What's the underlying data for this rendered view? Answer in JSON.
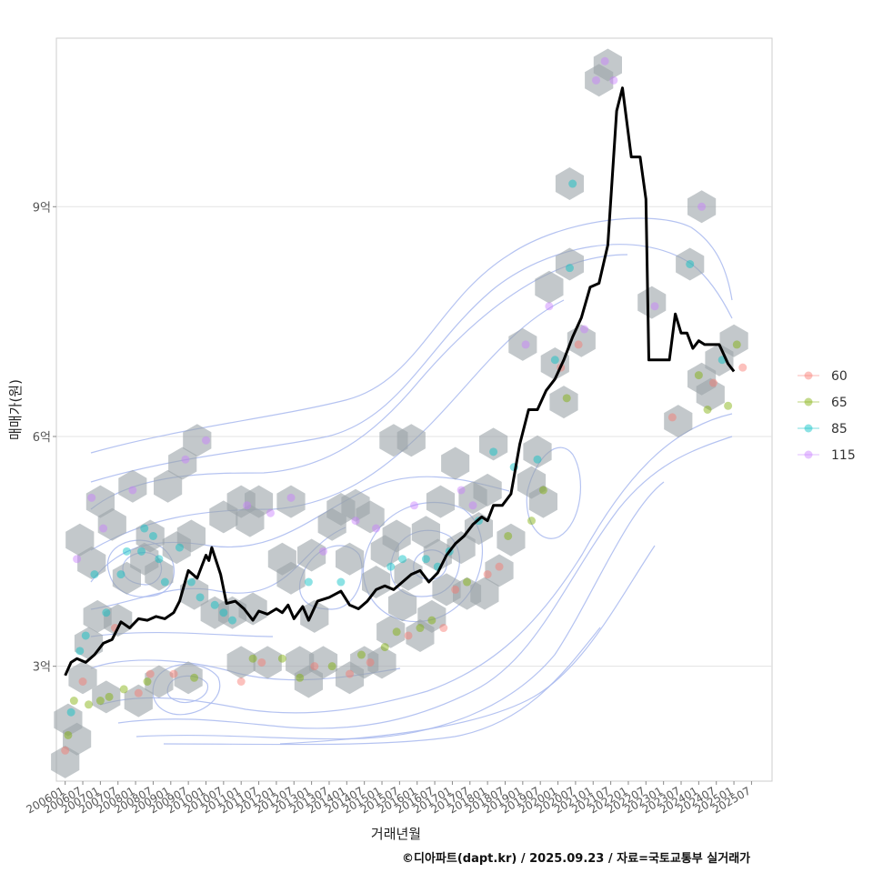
{
  "caption": "©디아파트(dapt.kr) / 2025.09.23 / 자료=국토교통부 실거래가",
  "chart_data": {
    "type": "line",
    "xlabel": "거래년월",
    "ylabel": "매매가(원)",
    "y_unit": "억",
    "ylim": [
      1.5,
      11.2
    ],
    "y_ticks": [
      3,
      6,
      9
    ],
    "y_tick_labels": [
      "3억",
      "6억",
      "9억"
    ],
    "xlim": [
      "2005-10",
      "2026-02"
    ],
    "x_tick_labels": [
      "200601",
      "200607",
      "200701",
      "200707",
      "200801",
      "200807",
      "200901",
      "200907",
      "201001",
      "201007",
      "201101",
      "201107",
      "201201",
      "201207",
      "201301",
      "201307",
      "201401",
      "201407",
      "201501",
      "201507",
      "201601",
      "201607",
      "201701",
      "201707",
      "201801",
      "201807",
      "201901",
      "201907",
      "202001",
      "202007",
      "202101",
      "202107",
      "202201",
      "202207",
      "202301",
      "202307",
      "202401",
      "202407",
      "202501",
      "202507"
    ],
    "grid": true,
    "legend_position": "right",
    "legend": [
      {
        "label": "60",
        "color": "#F8766D"
      },
      {
        "label": "65",
        "color": "#7CAE00"
      },
      {
        "label": "85",
        "color": "#00BFC4"
      },
      {
        "label": "115",
        "color": "#C77CFF"
      }
    ],
    "series": [
      {
        "kind": "median-trend",
        "color": "#000000",
        "points": [
          [
            "2006-01",
            2.88
          ],
          [
            "2006-03",
            3.05
          ],
          [
            "2006-05",
            3.1
          ],
          [
            "2006-08",
            3.05
          ],
          [
            "2006-11",
            3.15
          ],
          [
            "2007-02",
            3.3
          ],
          [
            "2007-05",
            3.35
          ],
          [
            "2007-08",
            3.58
          ],
          [
            "2007-11",
            3.5
          ],
          [
            "2008-02",
            3.62
          ],
          [
            "2008-05",
            3.6
          ],
          [
            "2008-08",
            3.65
          ],
          [
            "2008-11",
            3.62
          ],
          [
            "2009-02",
            3.7
          ],
          [
            "2009-04",
            3.85
          ],
          [
            "2009-07",
            4.25
          ],
          [
            "2009-10",
            4.15
          ],
          [
            "2010-01",
            4.45
          ],
          [
            "2010-02",
            4.38
          ],
          [
            "2010-03",
            4.55
          ],
          [
            "2010-06",
            4.2
          ],
          [
            "2010-08",
            3.82
          ],
          [
            "2010-11",
            3.85
          ],
          [
            "2011-02",
            3.75
          ],
          [
            "2011-05",
            3.6
          ],
          [
            "2011-07",
            3.72
          ],
          [
            "2011-10",
            3.68
          ],
          [
            "2012-01",
            3.75
          ],
          [
            "2012-03",
            3.7
          ],
          [
            "2012-05",
            3.8
          ],
          [
            "2012-07",
            3.62
          ],
          [
            "2012-10",
            3.78
          ],
          [
            "2012-12",
            3.6
          ],
          [
            "2013-03",
            3.85
          ],
          [
            "2013-07",
            3.9
          ],
          [
            "2013-11",
            3.98
          ],
          [
            "2014-02",
            3.8
          ],
          [
            "2014-05",
            3.75
          ],
          [
            "2014-08",
            3.85
          ],
          [
            "2014-11",
            4.0
          ],
          [
            "2015-02",
            4.05
          ],
          [
            "2015-05",
            4.0
          ],
          [
            "2015-08",
            4.1
          ],
          [
            "2015-11",
            4.2
          ],
          [
            "2016-02",
            4.25
          ],
          [
            "2016-05",
            4.1
          ],
          [
            "2016-08",
            4.22
          ],
          [
            "2016-11",
            4.45
          ],
          [
            "2017-02",
            4.6
          ],
          [
            "2017-05",
            4.7
          ],
          [
            "2017-08",
            4.85
          ],
          [
            "2017-11",
            4.95
          ],
          [
            "2018-01",
            4.9
          ],
          [
            "2018-03",
            5.1
          ],
          [
            "2018-06",
            5.1
          ],
          [
            "2018-09",
            5.25
          ],
          [
            "2018-12",
            5.9
          ],
          [
            "2019-03",
            6.35
          ],
          [
            "2019-06",
            6.35
          ],
          [
            "2019-09",
            6.6
          ],
          [
            "2019-12",
            6.75
          ],
          [
            "2020-03",
            7.0
          ],
          [
            "2020-06",
            7.3
          ],
          [
            "2020-09",
            7.55
          ],
          [
            "2020-12",
            7.95
          ],
          [
            "2021-03",
            8.0
          ],
          [
            "2021-06",
            8.5
          ],
          [
            "2021-09",
            10.25
          ],
          [
            "2021-11",
            10.55
          ],
          [
            "2022-02",
            9.65
          ],
          [
            "2022-05",
            9.65
          ],
          [
            "2022-07",
            9.1
          ],
          [
            "2022-08",
            7.0
          ],
          [
            "2022-11",
            7.0
          ],
          [
            "2023-03",
            7.0
          ],
          [
            "2023-05",
            7.6
          ],
          [
            "2023-07",
            7.35
          ],
          [
            "2023-09",
            7.35
          ],
          [
            "2023-11",
            7.15
          ],
          [
            "2024-01",
            7.25
          ],
          [
            "2024-03",
            7.2
          ],
          [
            "2024-08",
            7.2
          ],
          [
            "2024-11",
            6.95
          ],
          [
            "2025-01",
            6.85
          ]
        ]
      }
    ],
    "density_contours": {
      "color": "#A8B9EE"
    },
    "hexbin": {
      "color": "#9BA3A8"
    },
    "scatter": [
      [
        "2006-01",
        1.9,
        "60"
      ],
      [
        "2006-02",
        2.1,
        "65"
      ],
      [
        "2006-03",
        2.4,
        "85"
      ],
      [
        "2006-04",
        2.55,
        "65"
      ],
      [
        "2006-05",
        4.4,
        "115"
      ],
      [
        "2006-06",
        3.2,
        "85"
      ],
      [
        "2006-07",
        2.8,
        "60"
      ],
      [
        "2006-08",
        3.4,
        "85"
      ],
      [
        "2006-09",
        2.5,
        "65"
      ],
      [
        "2006-10",
        5.2,
        "115"
      ],
      [
        "2006-11",
        4.2,
        "85"
      ],
      [
        "2007-01",
        2.55,
        "65"
      ],
      [
        "2007-02",
        4.8,
        "115"
      ],
      [
        "2007-03",
        3.7,
        "85"
      ],
      [
        "2007-04",
        2.6,
        "65"
      ],
      [
        "2007-06",
        3.5,
        "60"
      ],
      [
        "2007-08",
        4.2,
        "85"
      ],
      [
        "2007-09",
        2.7,
        "65"
      ],
      [
        "2007-10",
        4.5,
        "85"
      ],
      [
        "2007-12",
        5.3,
        "115"
      ],
      [
        "2008-02",
        2.65,
        "60"
      ],
      [
        "2008-03",
        4.5,
        "85"
      ],
      [
        "2008-04",
        4.8,
        "85"
      ],
      [
        "2008-05",
        2.8,
        "65"
      ],
      [
        "2008-06",
        2.9,
        "60"
      ],
      [
        "2008-07",
        4.7,
        "85"
      ],
      [
        "2008-09",
        4.4,
        "85"
      ],
      [
        "2008-11",
        4.1,
        "85"
      ],
      [
        "2009-02",
        2.9,
        "60"
      ],
      [
        "2009-04",
        4.55,
        "85"
      ],
      [
        "2009-06",
        5.7,
        "115"
      ],
      [
        "2009-08",
        4.1,
        "85"
      ],
      [
        "2009-09",
        2.85,
        "65"
      ],
      [
        "2009-11",
        3.9,
        "85"
      ],
      [
        "2010-01",
        5.95,
        "115"
      ],
      [
        "2010-04",
        3.8,
        "85"
      ],
      [
        "2010-07",
        3.7,
        "85"
      ],
      [
        "2010-10",
        3.6,
        "85"
      ],
      [
        "2011-01",
        2.8,
        "60"
      ],
      [
        "2011-03",
        5.1,
        "115"
      ],
      [
        "2011-05",
        3.1,
        "65"
      ],
      [
        "2011-08",
        3.05,
        "60"
      ],
      [
        "2011-11",
        5.0,
        "115"
      ],
      [
        "2012-03",
        3.1,
        "65"
      ],
      [
        "2012-06",
        5.2,
        "115"
      ],
      [
        "2012-09",
        2.85,
        "65"
      ],
      [
        "2012-12",
        4.1,
        "85"
      ],
      [
        "2013-02",
        3.0,
        "60"
      ],
      [
        "2013-05",
        4.5,
        "115"
      ],
      [
        "2013-08",
        3.0,
        "65"
      ],
      [
        "2013-11",
        4.1,
        "85"
      ],
      [
        "2014-02",
        2.9,
        "60"
      ],
      [
        "2014-04",
        4.9,
        "115"
      ],
      [
        "2014-06",
        3.15,
        "65"
      ],
      [
        "2014-09",
        3.05,
        "60"
      ],
      [
        "2014-11",
        4.8,
        "115"
      ],
      [
        "2015-02",
        3.25,
        "65"
      ],
      [
        "2015-04",
        4.3,
        "85"
      ],
      [
        "2015-06",
        3.45,
        "65"
      ],
      [
        "2015-08",
        4.4,
        "85"
      ],
      [
        "2015-10",
        3.4,
        "60"
      ],
      [
        "2015-12",
        5.1,
        "115"
      ],
      [
        "2016-02",
        3.5,
        "65"
      ],
      [
        "2016-04",
        4.4,
        "85"
      ],
      [
        "2016-06",
        3.6,
        "65"
      ],
      [
        "2016-08",
        4.3,
        "85"
      ],
      [
        "2016-10",
        3.5,
        "60"
      ],
      [
        "2016-12",
        4.5,
        "85"
      ],
      [
        "2017-02",
        4.0,
        "60"
      ],
      [
        "2017-04",
        5.3,
        "115"
      ],
      [
        "2017-06",
        4.1,
        "65"
      ],
      [
        "2017-08",
        5.1,
        "115"
      ],
      [
        "2017-10",
        4.9,
        "85"
      ],
      [
        "2018-01",
        4.2,
        "60"
      ],
      [
        "2018-03",
        5.8,
        "85"
      ],
      [
        "2018-05",
        4.3,
        "60"
      ],
      [
        "2018-08",
        4.7,
        "65"
      ],
      [
        "2018-10",
        5.6,
        "85"
      ],
      [
        "2019-02",
        7.2,
        "115"
      ],
      [
        "2019-04",
        4.9,
        "65"
      ],
      [
        "2019-06",
        5.7,
        "85"
      ],
      [
        "2019-08",
        5.3,
        "65"
      ],
      [
        "2019-10",
        7.7,
        "115"
      ],
      [
        "2019-12",
        7.0,
        "85"
      ],
      [
        "2020-02",
        6.9,
        "60"
      ],
      [
        "2020-04",
        6.5,
        "65"
      ],
      [
        "2020-05",
        8.2,
        "85"
      ],
      [
        "2020-06",
        9.3,
        "85"
      ],
      [
        "2020-08",
        7.2,
        "60"
      ],
      [
        "2020-10",
        7.4,
        "115"
      ],
      [
        "2021-02",
        10.65,
        "115"
      ],
      [
        "2021-05",
        10.9,
        "115"
      ],
      [
        "2021-08",
        10.65,
        "115"
      ],
      [
        "2022-10",
        7.7,
        "115"
      ],
      [
        "2023-04",
        6.25,
        "60"
      ],
      [
        "2023-10",
        8.25,
        "85"
      ],
      [
        "2024-01",
        6.8,
        "65"
      ],
      [
        "2024-02",
        9.0,
        "115"
      ],
      [
        "2024-04",
        6.35,
        "65"
      ],
      [
        "2024-06",
        6.7,
        "60"
      ],
      [
        "2024-09",
        7.0,
        "85"
      ],
      [
        "2024-11",
        6.4,
        "65"
      ],
      [
        "2025-02",
        7.2,
        "65"
      ],
      [
        "2025-04",
        6.9,
        "60"
      ]
    ],
    "hexes": [
      [
        "2006-01",
        1.75
      ],
      [
        "2006-02",
        2.3
      ],
      [
        "2006-05",
        2.05
      ],
      [
        "2006-07",
        2.85
      ],
      [
        "2006-09",
        3.3
      ],
      [
        "2006-06",
        4.65
      ],
      [
        "2006-10",
        4.35
      ],
      [
        "2006-12",
        3.65
      ],
      [
        "2007-01",
        5.15
      ],
      [
        "2007-03",
        2.6
      ],
      [
        "2007-05",
        4.85
      ],
      [
        "2007-07",
        3.6
      ],
      [
        "2007-10",
        4.15
      ],
      [
        "2007-12",
        5.35
      ],
      [
        "2008-02",
        2.55
      ],
      [
        "2008-04",
        4.4
      ],
      [
        "2008-06",
        4.7
      ],
      [
        "2008-09",
        2.8
      ],
      [
        "2008-09",
        4.2
      ],
      [
        "2008-12",
        5.35
      ],
      [
        "2009-03",
        4.55
      ],
      [
        "2009-05",
        5.65
      ],
      [
        "2009-07",
        2.85
      ],
      [
        "2009-08",
        4.7
      ],
      [
        "2009-09",
        3.95
      ],
      [
        "2009-10",
        5.95
      ],
      [
        "2010-04",
        3.7
      ],
      [
        "2010-07",
        4.95
      ],
      [
        "2010-10",
        3.7
      ],
      [
        "2011-01",
        5.15
      ],
      [
        "2011-01",
        3.05
      ],
      [
        "2011-04",
        4.9
      ],
      [
        "2011-05",
        3.75
      ],
      [
        "2011-07",
        5.15
      ],
      [
        "2011-10",
        3.05
      ],
      [
        "2012-03",
        4.4
      ],
      [
        "2012-06",
        4.15
      ],
      [
        "2012-06",
        5.15
      ],
      [
        "2012-09",
        3.05
      ],
      [
        "2012-12",
        2.8
      ],
      [
        "2013-01",
        4.45
      ],
      [
        "2013-02",
        3.65
      ],
      [
        "2013-05",
        3.05
      ],
      [
        "2013-08",
        4.85
      ],
      [
        "2013-11",
        5.05
      ],
      [
        "2014-02",
        2.85
      ],
      [
        "2014-02",
        4.4
      ],
      [
        "2014-04",
        5.1
      ],
      [
        "2014-07",
        3.05
      ],
      [
        "2014-09",
        4.95
      ],
      [
        "2014-11",
        4.1
      ],
      [
        "2015-01",
        3.05
      ],
      [
        "2015-02",
        4.5
      ],
      [
        "2015-04",
        3.45
      ],
      [
        "2015-05",
        5.95
      ],
      [
        "2015-06",
        4.7
      ],
      [
        "2015-08",
        3.8
      ],
      [
        "2015-10",
        4.2
      ],
      [
        "2015-11",
        5.95
      ],
      [
        "2016-02",
        3.4
      ],
      [
        "2016-04",
        4.75
      ],
      [
        "2016-06",
        3.65
      ],
      [
        "2016-08",
        4.45
      ],
      [
        "2016-09",
        5.15
      ],
      [
        "2016-11",
        4.0
      ],
      [
        "2017-02",
        5.65
      ],
      [
        "2017-04",
        4.55
      ],
      [
        "2017-06",
        3.95
      ],
      [
        "2017-08",
        5.2
      ],
      [
        "2017-10",
        4.8
      ],
      [
        "2017-12",
        3.95
      ],
      [
        "2018-01",
        5.3
      ],
      [
        "2018-03",
        5.9
      ],
      [
        "2018-05",
        4.25
      ],
      [
        "2018-09",
        4.65
      ],
      [
        "2019-01",
        7.2
      ],
      [
        "2019-04",
        5.4
      ],
      [
        "2019-06",
        5.8
      ],
      [
        "2019-08",
        5.15
      ],
      [
        "2019-10",
        7.95
      ],
      [
        "2019-12",
        6.95
      ],
      [
        "2020-03",
        6.45
      ],
      [
        "2020-05",
        8.25
      ],
      [
        "2020-05",
        9.3
      ],
      [
        "2020-09",
        7.25
      ],
      [
        "2021-03",
        10.65
      ],
      [
        "2021-06",
        10.85
      ],
      [
        "2022-09",
        7.75
      ],
      [
        "2023-06",
        6.2
      ],
      [
        "2023-10",
        8.25
      ],
      [
        "2024-02",
        9.0
      ],
      [
        "2024-02",
        6.75
      ],
      [
        "2024-05",
        6.55
      ],
      [
        "2024-08",
        7.0
      ],
      [
        "2025-01",
        7.25
      ]
    ]
  }
}
